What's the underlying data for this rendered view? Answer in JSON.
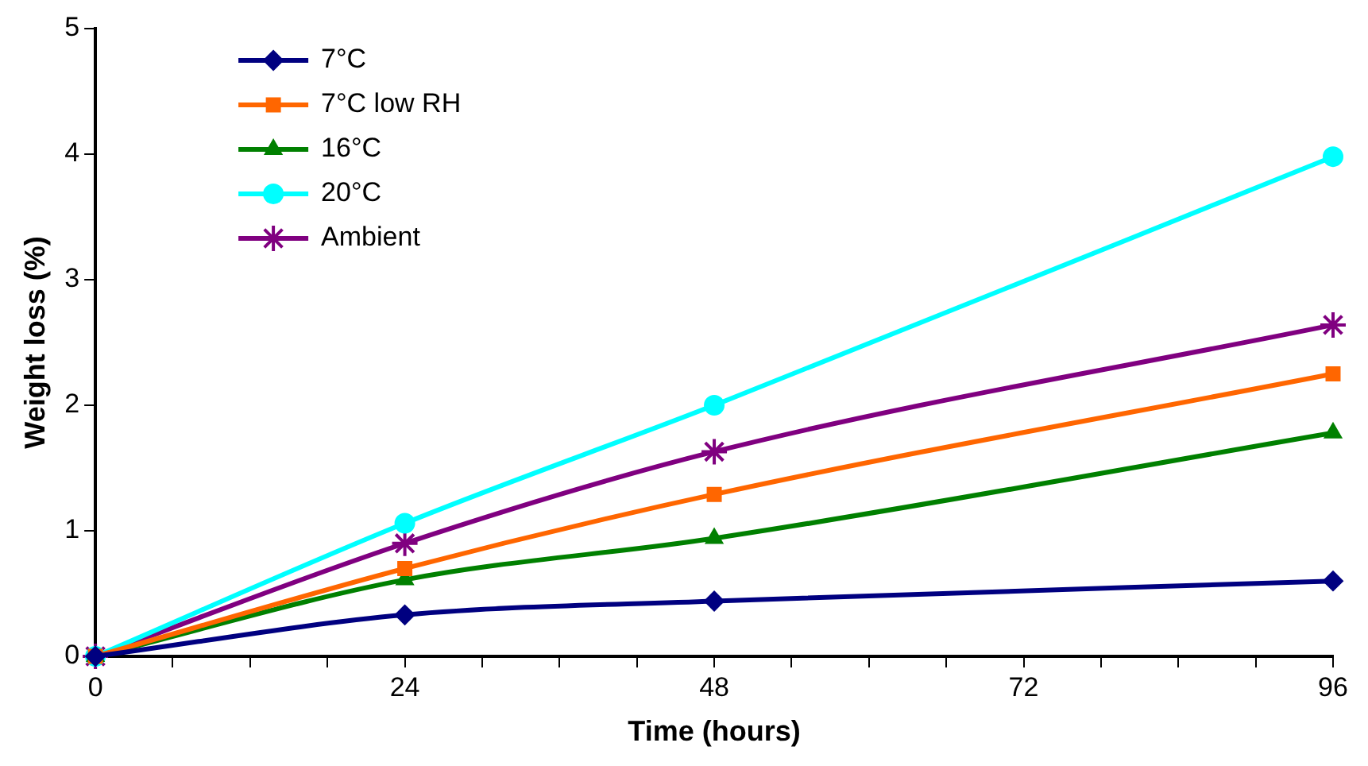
{
  "chart_data": {
    "type": "line",
    "xlabel": "Time (hours)",
    "ylabel": "Weight loss (%)",
    "x": [
      0,
      24,
      48,
      96
    ],
    "series": [
      {
        "name": "7°C",
        "color": "#000080",
        "marker": "diamond",
        "values": [
          0,
          0.33,
          0.44,
          0.6
        ]
      },
      {
        "name": "7°C low RH",
        "color": "#ff6600",
        "marker": "square",
        "values": [
          0,
          0.7,
          1.29,
          2.25
        ]
      },
      {
        "name": "16°C",
        "color": "#008000",
        "marker": "triangle",
        "values": [
          0,
          0.61,
          0.94,
          1.78
        ]
      },
      {
        "name": "20°C",
        "color": "#00ffff",
        "marker": "circle",
        "values": [
          0,
          1.06,
          2.0,
          3.98
        ]
      },
      {
        "name": "Ambient",
        "color": "#800080",
        "marker": "cross",
        "values": [
          0,
          0.9,
          1.63,
          2.64
        ]
      }
    ],
    "xlim": [
      0,
      96
    ],
    "xticks": [
      0,
      {
        "value": 6,
        "label": null
      },
      {
        "value": 12,
        "label": null
      },
      {
        "value": 18,
        "label": null
      },
      24,
      {
        "value": 30,
        "label": null
      },
      {
        "value": 36,
        "label": null
      },
      {
        "value": 42,
        "label": null
      },
      48,
      {
        "value": 54,
        "label": null
      },
      {
        "value": 60,
        "label": null
      },
      {
        "value": 66,
        "label": null
      },
      72,
      {
        "value": 78,
        "label": null
      },
      {
        "value": 84,
        "label": null
      },
      {
        "value": 90,
        "label": null
      },
      96
    ],
    "ylim": [
      0,
      5
    ],
    "yticks": [
      0,
      1,
      2,
      3,
      4,
      5
    ],
    "grid": false,
    "legend": "top left",
    "line_style": "solid"
  }
}
